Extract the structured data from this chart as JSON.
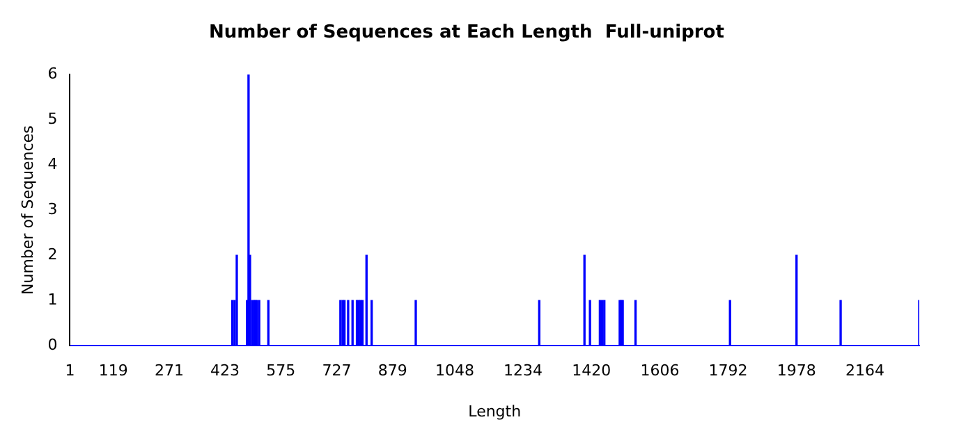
{
  "chart_data": {
    "type": "bar",
    "title": "Number of Sequences at Each Length  Full-uniprot",
    "xlabel": "Length",
    "ylabel": "Number of Sequences",
    "x": [
      443,
      449,
      455,
      483,
      487,
      491,
      497,
      502,
      506,
      510,
      516,
      541,
      737,
      743,
      748,
      758,
      770,
      782,
      787,
      792,
      797,
      808,
      822,
      942,
      1278,
      1401,
      1416,
      1443,
      1449,
      1455,
      1497,
      1501,
      1505,
      1540,
      1797,
      1978,
      2098,
      2312
    ],
    "series": [
      {
        "color": "#0000ff",
        "values": [
          1,
          1,
          2,
          1,
          6,
          2,
          1,
          1,
          1,
          1,
          1,
          1,
          1,
          1,
          1,
          1,
          1,
          1,
          1,
          1,
          1,
          2,
          1,
          1,
          1,
          2,
          1,
          1,
          1,
          1,
          1,
          1,
          1,
          1,
          1,
          2,
          1,
          1
        ]
      }
    ],
    "xlim": [
      1,
      2312
    ],
    "xticks": [
      1,
      119,
      271,
      423,
      575,
      727,
      879,
      1048,
      1234,
      1420,
      1606,
      1792,
      1978,
      2164
    ],
    "ylim": [
      0,
      6
    ],
    "yticks": [
      0,
      1,
      2,
      3,
      4,
      5,
      6
    ],
    "grid": false,
    "legend": false
  }
}
